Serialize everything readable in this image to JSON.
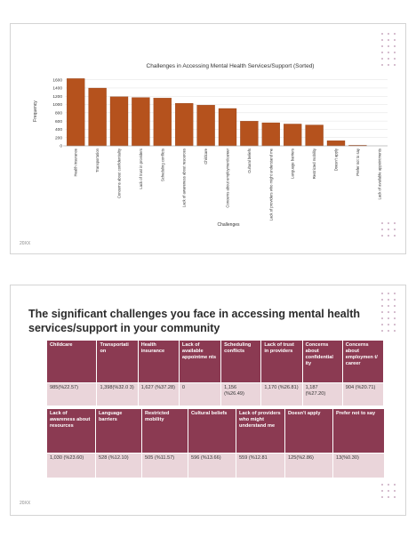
{
  "slide1": {
    "footer": "20XX",
    "chart_data": {
      "type": "bar",
      "title": "Challenges in Accessing Mental Health Services/Support (Sorted)",
      "xlabel": "Challenges",
      "ylabel": "Frequency",
      "ylim": [
        0,
        1700
      ],
      "yticks": [
        0,
        200,
        400,
        600,
        800,
        1000,
        1200,
        1400,
        1600
      ],
      "grid": true,
      "bar_color": "#b5521d",
      "categories": [
        "Health insurance",
        "Transportation",
        "Concerns about confidentiality",
        "Lack of trust in providers",
        "Scheduling conflicts",
        "Lack of awareness about resources",
        "Childcare",
        "Concerns about employment/career",
        "Cultural beliefs",
        "Lack of providers who might understand me",
        "Language barriers",
        "Restricted mobility",
        "Doesn't apply",
        "Prefer not to say",
        "Lack of available appointments"
      ],
      "values": [
        1627,
        1398,
        1187,
        1170,
        1156,
        1030,
        985,
        904,
        596,
        559,
        528,
        505,
        125,
        13,
        0
      ]
    }
  },
  "slide2": {
    "title": "The significant challenges you face in accessing mental health services/support in your community",
    "footer": "20XX",
    "table1": {
      "headers": [
        "Childcare",
        "Transportati on",
        "Health insurance",
        "Lack of available appointme nts",
        "Scheduling conflicts",
        "Lack of trust in providers",
        "Concerns about confidential ity",
        "Concerns about employmen t/ career"
      ],
      "values": [
        "985(%22.57)",
        "1,398(%32.0 3)",
        "1,627 (%37.28)",
        "0",
        "1,156 (%26.49)",
        "1,170 (%26.81)",
        "1,187 (%27.20)",
        "904 (%20.71)"
      ]
    },
    "table2": {
      "headers": [
        "Lack of awareness about resources",
        "Language barriers",
        "Restricted mobility",
        "Cultural beliefs",
        "Lack of providers who might understand me",
        "Doesn't apply",
        "Prefer not to say"
      ],
      "values": [
        "1,030 (%23.60)",
        "528 (%12.10)",
        "505 (%11.57)",
        "596 (%13.66)",
        "559 (%12.81",
        "125(%2.86)",
        "13(%0.30)"
      ]
    },
    "colors": {
      "header_bg": "#8b3a52",
      "cell_bg": "#ead5da"
    }
  }
}
